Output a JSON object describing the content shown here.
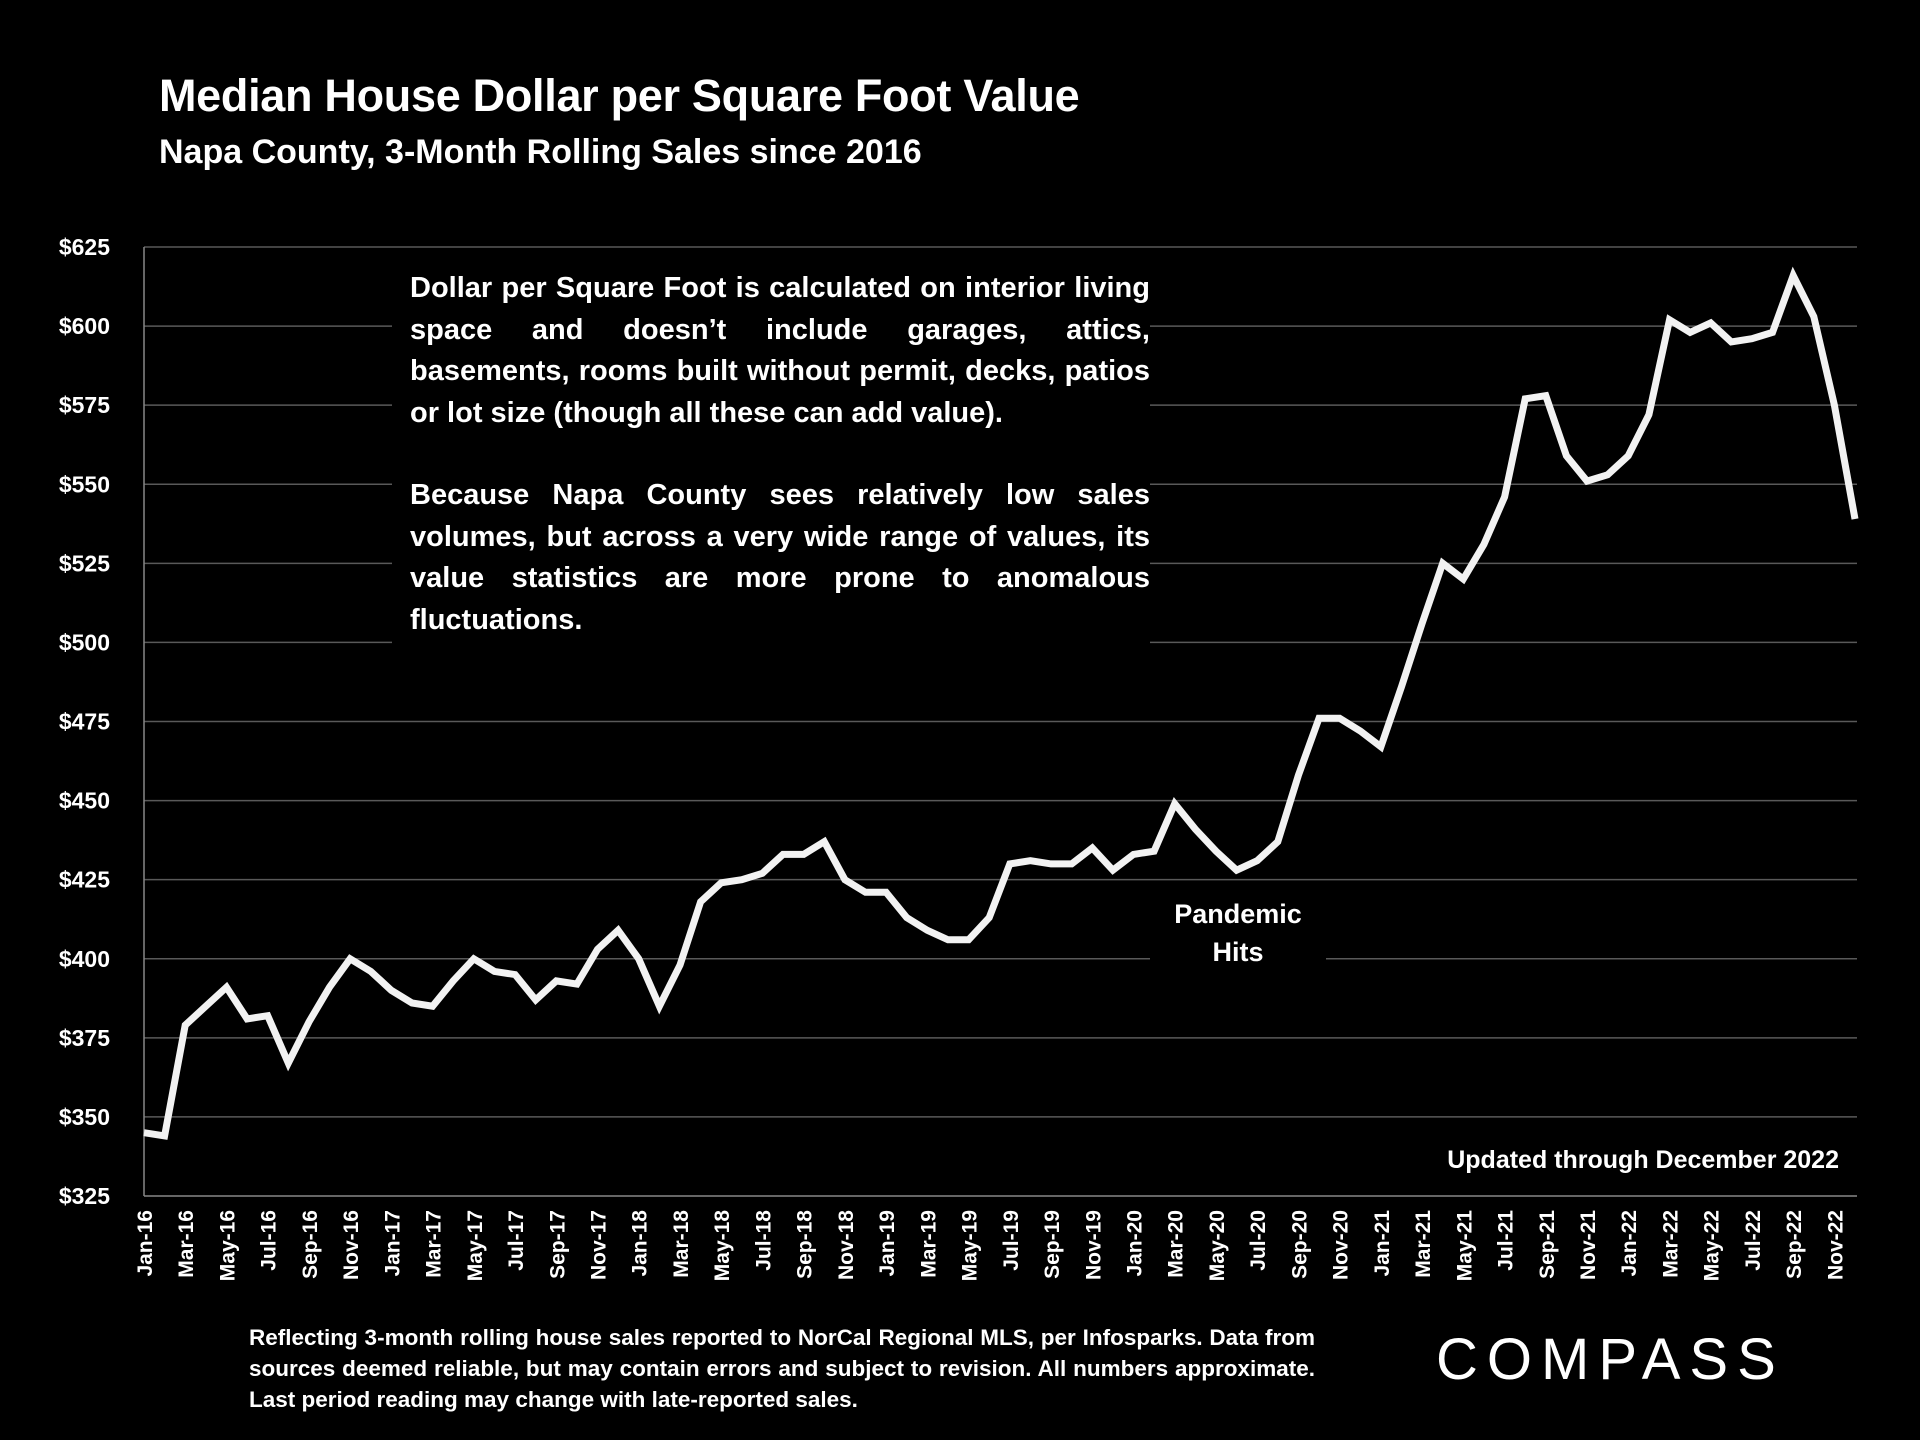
{
  "chart_data": {
    "type": "line",
    "title": "Median House Dollar per Square Foot Value",
    "subtitle": "Napa County, 3-Month Rolling Sales since 2016",
    "xlabel": "",
    "ylabel": "",
    "ylim": [
      325,
      625
    ],
    "y_ticks": [
      325,
      350,
      375,
      400,
      425,
      450,
      475,
      500,
      525,
      550,
      575,
      600,
      625
    ],
    "y_tick_labels": [
      "$325",
      "$350",
      "$375",
      "$400",
      "$425",
      "$450",
      "$475",
      "$500",
      "$525",
      "$550",
      "$575",
      "$600",
      "$625"
    ],
    "grid": true,
    "x": [
      "Jan-16",
      "Feb-16",
      "Mar-16",
      "Apr-16",
      "May-16",
      "Jun-16",
      "Jul-16",
      "Aug-16",
      "Sep-16",
      "Oct-16",
      "Nov-16",
      "Dec-16",
      "Jan-17",
      "Feb-17",
      "Mar-17",
      "Apr-17",
      "May-17",
      "Jun-17",
      "Jul-17",
      "Aug-17",
      "Sep-17",
      "Oct-17",
      "Nov-17",
      "Dec-17",
      "Jan-18",
      "Feb-18",
      "Mar-18",
      "Apr-18",
      "May-18",
      "Jun-18",
      "Jul-18",
      "Aug-18",
      "Sep-18",
      "Oct-18",
      "Nov-18",
      "Dec-18",
      "Jan-19",
      "Feb-19",
      "Mar-19",
      "Apr-19",
      "May-19",
      "Jun-19",
      "Jul-19",
      "Aug-19",
      "Sep-19",
      "Oct-19",
      "Nov-19",
      "Dec-19",
      "Jan-20",
      "Feb-20",
      "Mar-20",
      "Apr-20",
      "May-20",
      "Jun-20",
      "Jul-20",
      "Aug-20",
      "Sep-20",
      "Oct-20",
      "Nov-20",
      "Dec-20",
      "Jan-21",
      "Feb-21",
      "Mar-21",
      "Apr-21",
      "May-21",
      "Jun-21",
      "Jul-21",
      "Aug-21",
      "Sep-21",
      "Oct-21",
      "Nov-21",
      "Dec-21",
      "Jan-22",
      "Feb-22",
      "Mar-22",
      "Apr-22",
      "May-22",
      "Jun-22",
      "Jul-22",
      "Aug-22",
      "Sep-22",
      "Oct-22",
      "Nov-22",
      "Dec-22"
    ],
    "series": [
      {
        "name": "Median $/Sq.Ft.",
        "color": "#f2f2f2",
        "values": [
          345,
          344,
          379,
          385,
          391,
          381,
          382,
          367,
          380,
          391,
          400,
          396,
          390,
          386,
          385,
          393,
          400,
          396,
          395,
          387,
          393,
          392,
          403,
          409,
          400,
          385,
          398,
          418,
          424,
          425,
          427,
          433,
          433,
          437,
          425,
          421,
          421,
          413,
          409,
          406,
          406,
          413,
          430,
          431,
          430,
          430,
          435,
          428,
          433,
          434,
          449,
          441,
          434,
          428,
          431,
          437,
          458,
          476,
          476,
          472,
          467,
          486,
          506,
          525,
          520,
          531,
          546,
          577,
          578,
          559,
          551,
          553,
          559,
          572,
          602,
          598,
          601,
          595,
          596,
          598,
          616,
          603,
          575,
          539
        ]
      }
    ],
    "annotations": {
      "note_paragraphs": [
        "Dollar per Square Foot is calculated on interior living space and doesn’t include garages, attics, basements, rooms built without permit, decks, patios or lot size (though all these can add value).",
        "Because Napa County sees relatively low sales volumes, but across a very wide range of values, its value statistics are more prone to anomalous fluctuations."
      ],
      "pandemic_line1": "Pandemic",
      "pandemic_line2": "Hits",
      "updated": "Updated through December 2022"
    }
  },
  "footer": "Reflecting 3-month rolling house sales reported to NorCal Regional MLS, per Infosparks. Data from sources deemed reliable, but may contain errors and subject to revision. All numbers approximate. Last period reading may change with late-reported sales.",
  "logo": "COMPASS"
}
